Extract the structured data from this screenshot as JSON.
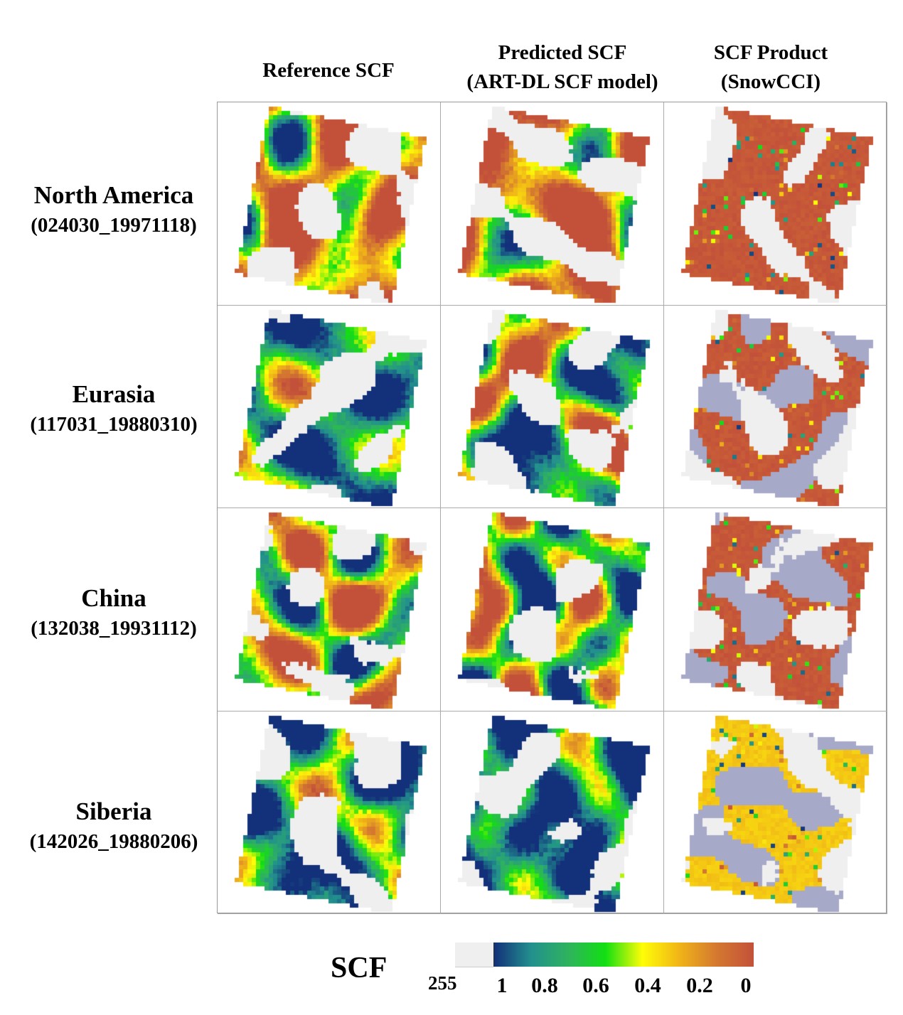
{
  "columns": [
    {
      "line1": "Reference SCF",
      "line2": ""
    },
    {
      "line1": "Predicted SCF",
      "line2": "(ART-DL SCF model)"
    },
    {
      "line1": "SCF Product",
      "line2": "(SnowCCI)"
    }
  ],
  "rows": [
    {
      "name": "North America",
      "id": "(024030_19971118)"
    },
    {
      "name": "Eurasia",
      "id": "(117031_19880310)"
    },
    {
      "name": "China",
      "id": "(132038_19931112)"
    },
    {
      "name": "Siberia",
      "id": "(142026_19880206)"
    }
  ],
  "colorbar": {
    "title": "SCF",
    "nodata_label": "255",
    "ticks": [
      "1",
      "0.8",
      "0.6",
      "0.4",
      "0.2",
      "0"
    ],
    "nodata_color": "#efefef",
    "colors": [
      "#13307a",
      "#22908e",
      "#2fb35e",
      "#12df12",
      "#fffd07",
      "#f0b418",
      "#d47830",
      "#c3513a"
    ],
    "snowcci_extra_color": "#a7a9c9"
  }
}
